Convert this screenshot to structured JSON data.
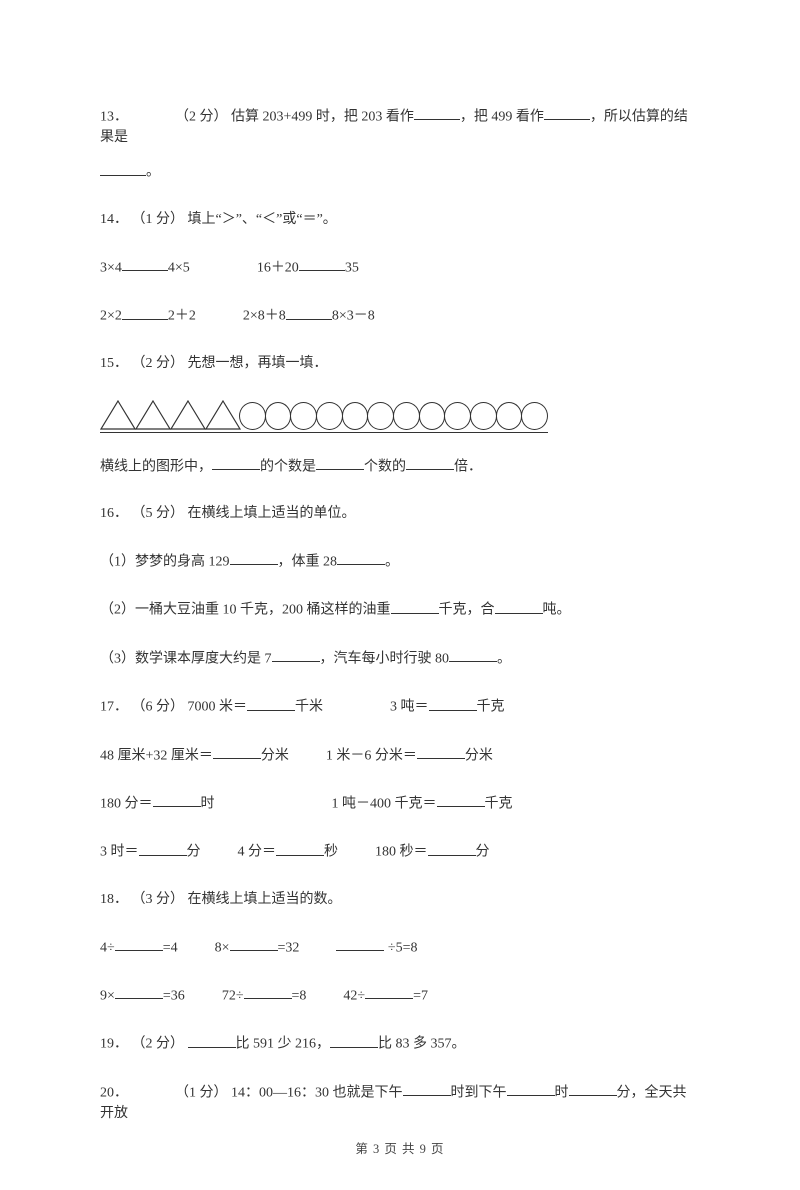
{
  "q13": {
    "num": "13．",
    "points": "（2 分）",
    "pre": "估算 203+499 时，把 203 看作",
    "mid1": "，把 499 看作",
    "mid2": "，所以估算的结果是",
    "end": "。"
  },
  "q14": {
    "num": "14．",
    "points": "（1 分）",
    "text": "填上“＞”、“＜”或“＝”。",
    "r1a_l": "3×4",
    "r1a_r": "4×5",
    "r1b_l": "16＋20",
    "r1b_r": "35",
    "r2a_l": "2×2",
    "r2a_r": "2＋2",
    "r2b_l": "2×8＋8",
    "r2b_r": "8×3－8"
  },
  "q15": {
    "num": "15．",
    "points": "（2 分）",
    "text": "先想一想，再填一填．",
    "triangles": 4,
    "circles": 12,
    "line_pre": "横线上的图形中，",
    "line_mid1": "的个数是",
    "line_mid2": "个数的",
    "line_end": "倍．"
  },
  "q16": {
    "num": "16．",
    "points": "（5 分）",
    "text": "在横线上填上适当的单位。",
    "s1_pre": "（1）梦梦的身高 129",
    "s1_mid": "，体重 28",
    "s1_end": "。",
    "s2_pre": "（2）一桶大豆油重 10 千克，200 桶这样的油重",
    "s2_mid": "千克，合",
    "s2_end": "吨。",
    "s3_pre": "（3）数学课本厚度大约是 7",
    "s3_mid": "，汽车每小时行驶 80",
    "s3_end": "。"
  },
  "q17": {
    "num": "17．",
    "points": "（6 分）",
    "a_l": "7000 米＝",
    "a_r": "千米",
    "b_l": "3 吨＝",
    "b_r": "千克",
    "c_l": "48 厘米+32 厘米＝",
    "c_r": "分米",
    "d_l": "1 米－6 分米＝",
    "d_r": "分米",
    "e_l": "180 分＝",
    "e_r": "时",
    "f_l": "1 吨－400 千克＝",
    "f_r": "千克",
    "g_l": "3 时＝",
    "g_r": "分",
    "h_l": "4 分＝",
    "h_r": "秒",
    "i_l": "180 秒＝",
    "i_r": "分"
  },
  "q18": {
    "num": "18．",
    "points": "（3 分）",
    "text": "在横线上填上适当的数。",
    "a_l": "4÷",
    "a_r": "=4",
    "b_l": "8×",
    "b_r": "=32",
    "c_r": "÷5=8",
    "d_l": "9×",
    "d_r": "=36",
    "e_l": "72÷",
    "e_r": "=8",
    "f_l": "42÷",
    "f_r": "=7"
  },
  "q19": {
    "num": "19．",
    "points": "（2 分）",
    "mid1": "比 591 少 216，",
    "mid2": "比 83 多 357。"
  },
  "q20": {
    "num": "20．",
    "points": "（1 分）",
    "pre": "14：00—16：30 也就是下午",
    "mid1": "时到下午",
    "mid2": "时",
    "mid3": "分，全天共开放"
  },
  "footer": "第 3 页 共 9 页"
}
